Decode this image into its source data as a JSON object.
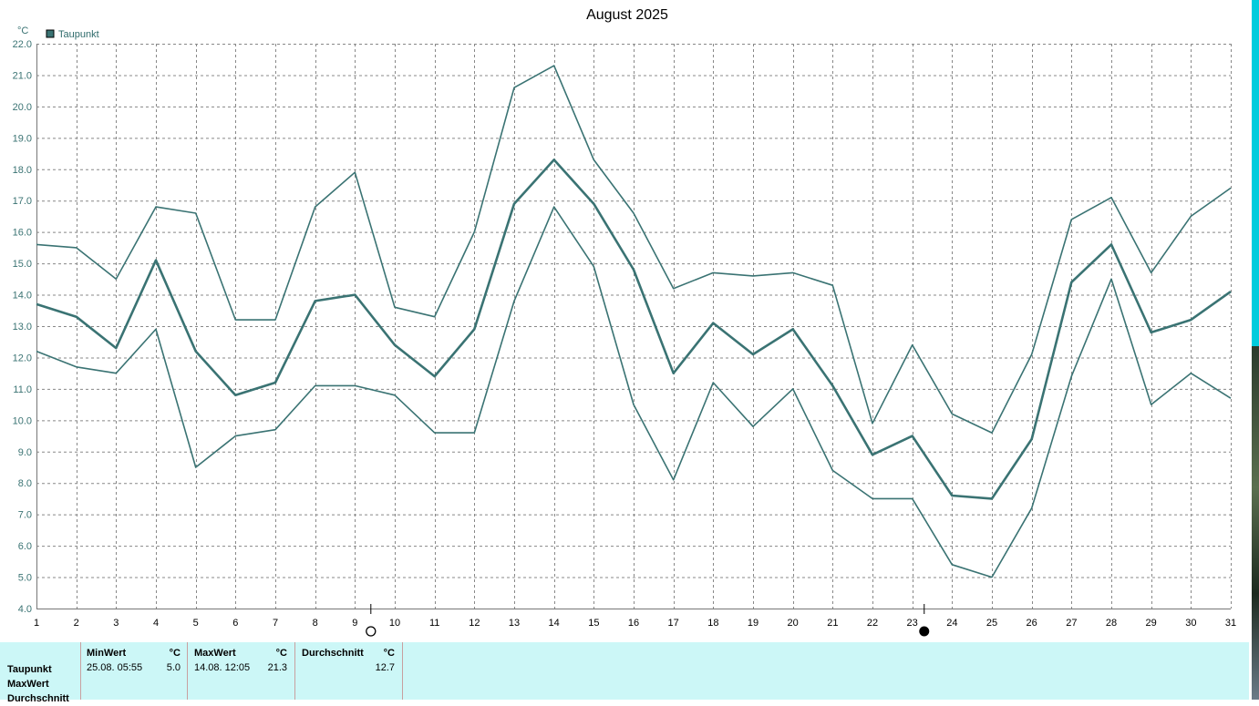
{
  "chart_data": {
    "type": "line",
    "title": "August 2025",
    "ylabel": "°C",
    "xlabel": "",
    "ylim": [
      4.0,
      22.0
    ],
    "yticks": [
      "4.0",
      "5.0",
      "6.0",
      "7.0",
      "8.0",
      "9.0",
      "10.0",
      "11.0",
      "12.0",
      "13.0",
      "14.0",
      "15.0",
      "16.0",
      "17.0",
      "18.0",
      "19.0",
      "20.0",
      "21.0",
      "22.0"
    ],
    "categories": [
      "1",
      "2",
      "3",
      "4",
      "5",
      "6",
      "7",
      "8",
      "9",
      "10",
      "11",
      "12",
      "13",
      "14",
      "15",
      "16",
      "17",
      "18",
      "19",
      "20",
      "21",
      "22",
      "23",
      "24",
      "25",
      "26",
      "27",
      "28",
      "29",
      "30",
      "31"
    ],
    "legend": [
      "Taupunkt"
    ],
    "legend_position": "top-left",
    "grid": true,
    "color": "#3a7373",
    "series": [
      {
        "name": "Taupunkt",
        "role": "max",
        "values": [
          15.6,
          15.5,
          14.5,
          16.8,
          16.6,
          13.2,
          13.2,
          16.8,
          17.9,
          13.6,
          13.3,
          16.0,
          20.6,
          21.3,
          18.3,
          16.6,
          14.2,
          14.7,
          14.6,
          14.7,
          14.3,
          9.9,
          12.4,
          10.2,
          9.6,
          12.1,
          16.4,
          17.1,
          14.7,
          16.5,
          17.4
        ]
      },
      {
        "name": "Taupunkt",
        "role": "avg",
        "values": [
          13.7,
          13.3,
          12.3,
          15.1,
          12.2,
          10.8,
          11.2,
          13.8,
          14.0,
          12.4,
          11.4,
          12.9,
          16.9,
          18.3,
          16.9,
          14.8,
          11.5,
          13.1,
          12.1,
          12.9,
          11.1,
          8.9,
          9.5,
          7.6,
          7.5,
          9.4,
          14.4,
          15.6,
          12.8,
          13.2,
          14.1
        ]
      },
      {
        "name": "Taupunkt",
        "role": "min",
        "values": [
          12.2,
          11.7,
          11.5,
          12.9,
          8.5,
          9.5,
          9.7,
          11.1,
          11.1,
          10.8,
          9.6,
          9.6,
          13.8,
          16.8,
          14.9,
          10.5,
          8.1,
          11.2,
          9.8,
          11.0,
          8.4,
          7.5,
          7.5,
          5.4,
          5.0,
          7.2,
          11.4,
          14.5,
          10.5,
          11.5,
          10.7
        ]
      }
    ],
    "moon_phases": [
      {
        "day": 9.4,
        "phase": "full-moon"
      },
      {
        "day": 23.3,
        "phase": "new-moon"
      }
    ]
  },
  "stats": {
    "row_labels": [
      "Taupunkt",
      "MaxWert",
      "Durchschnitt"
    ],
    "min": {
      "header": "MinWert",
      "unit": "°C",
      "datetime": "25.08.  05:55",
      "value": "5.0"
    },
    "max": {
      "header": "MaxWert",
      "unit": "°C",
      "datetime": "14.08.  12:05",
      "value": "21.3"
    },
    "avg": {
      "header": "Durchschnitt",
      "unit": "°C",
      "value": "12.7"
    }
  }
}
